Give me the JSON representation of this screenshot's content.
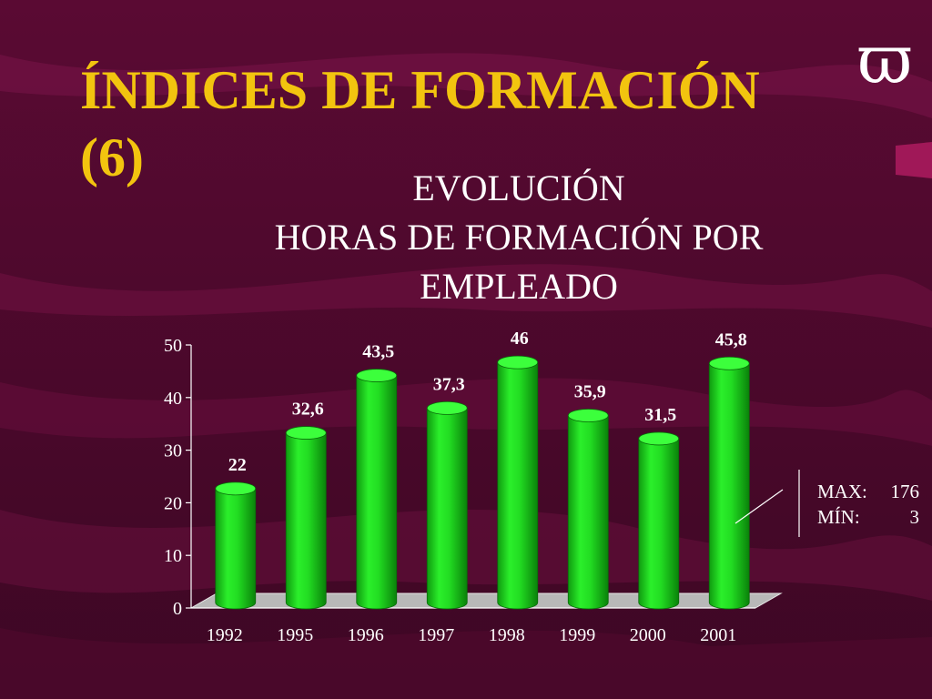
{
  "slide": {
    "title_line1": "ÍNDICES DE FORMACIÓN",
    "title_line2": "(6)",
    "logo_glyph": "ϖ",
    "subtitle_lines": [
      "EVOLUCIÓN",
      "HORAS DE FORMACIÓN POR",
      "EMPLEADO"
    ],
    "stats": [
      {
        "label": "MAX:",
        "value": "176"
      },
      {
        "label": "MÍN:",
        "value": "3"
      }
    ],
    "colors": {
      "background": "#5e0a36",
      "title": "#f2c40f",
      "bar": "#22dd22",
      "text": "#ffffff"
    }
  },
  "chart_data": {
    "type": "bar",
    "categories": [
      "1992",
      "1995",
      "1996",
      "1997",
      "1998",
      "1999",
      "2000",
      "2001"
    ],
    "values": [
      22,
      32.6,
      43.5,
      37.3,
      46,
      35.9,
      31.5,
      45.8
    ],
    "data_labels": [
      "22",
      "32,6",
      "43,5",
      "37,3",
      "46",
      "35,9",
      "31,5",
      "45,8"
    ],
    "yticks": [
      "0",
      "10",
      "20",
      "30",
      "40",
      "50"
    ],
    "ylim": [
      0,
      50
    ],
    "grid": false,
    "legend": false,
    "style": "3d-cylinder"
  }
}
